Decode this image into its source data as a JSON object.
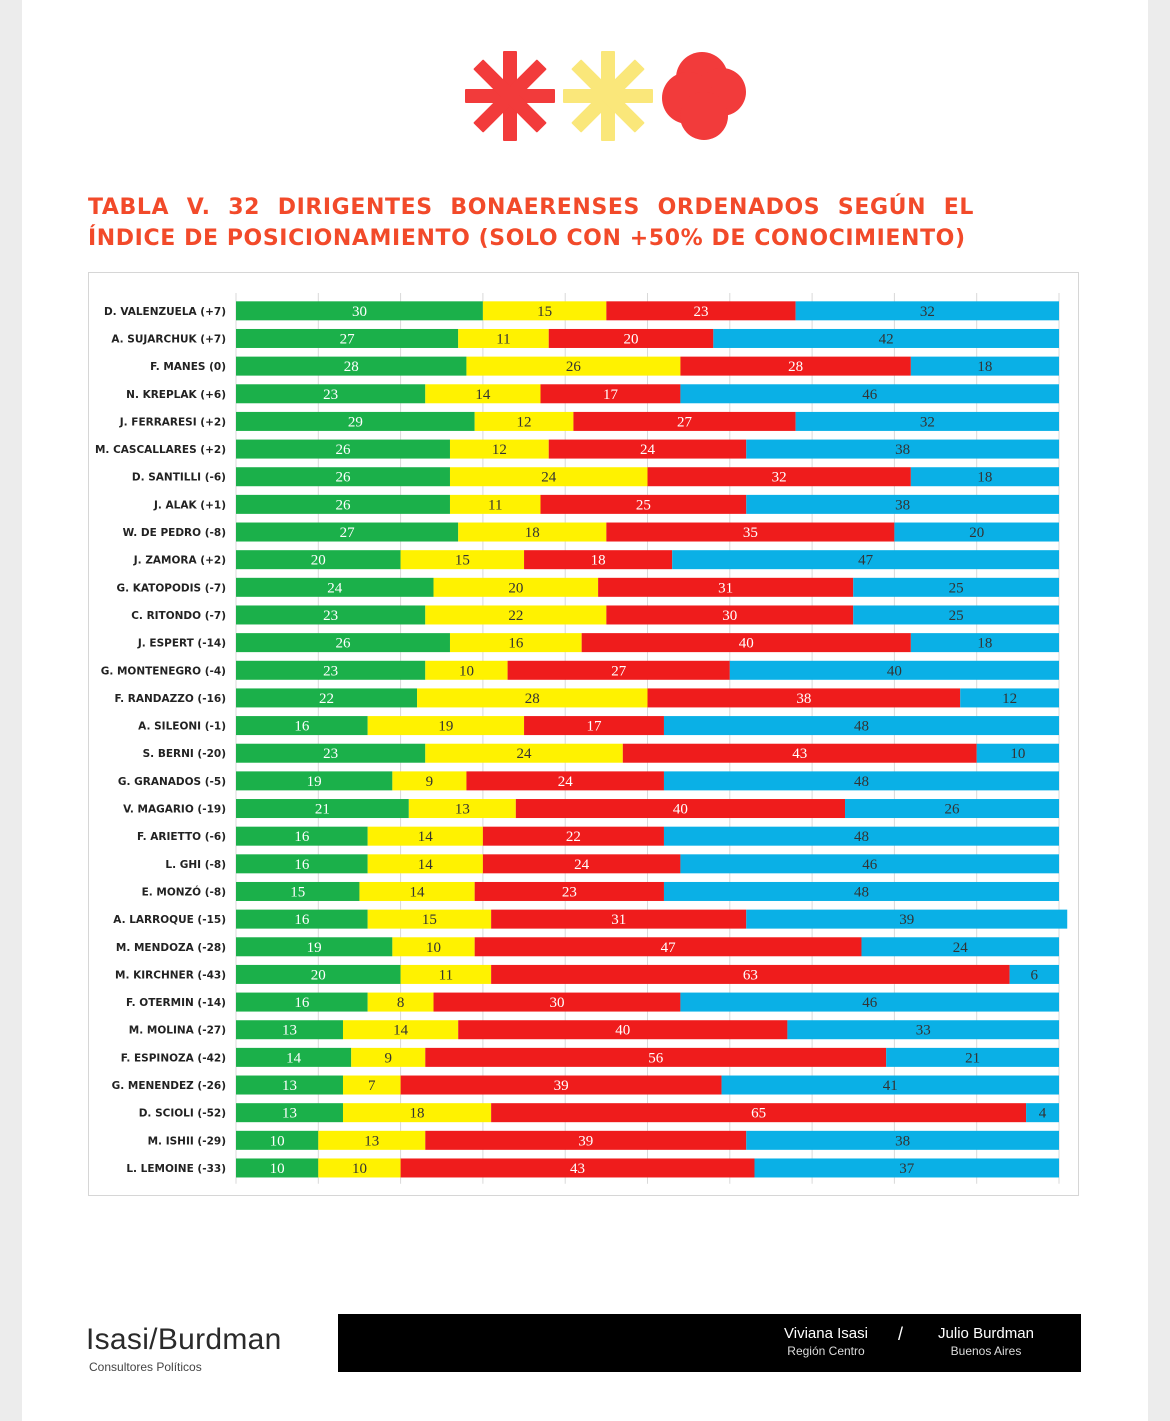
{
  "header": {
    "title": "TABLA V. 32 DIRIGENTES BONAERENSES ORDENADOS SEGÚN EL ÍNDICE DE POSICIONAMIENTO (SOLO CON +50% DE CONOCIMIENTO)",
    "logo_icon": "asterisk-asterisk-cloud-logo",
    "logo_colors": [
      "#f23b3b",
      "#fae77a",
      "#f23b3b"
    ]
  },
  "chart_data": {
    "type": "bar",
    "orientation": "horizontal-stacked-100",
    "title": "",
    "xlabel": "",
    "ylabel": "",
    "xlim": [
      0,
      100
    ],
    "grid": true,
    "categories": [
      "D. VALENZUELA (+7)",
      "A. SUJARCHUK (+7)",
      "F. MANES (0)",
      "N. KREPLAK (+6)",
      "J. FERRARESI (+2)",
      "M. CASCALLARES (+2)",
      "D. SANTILLI (-6)",
      "J. ALAK (+1)",
      "W. DE PEDRO (-8)",
      "J. ZAMORA (+2)",
      "G. KATOPODIS (-7)",
      "C. RITONDO (-7)",
      "J. ESPERT (-14)",
      "G. MONTENEGRO (-4)",
      "F. RANDAZZO (-16)",
      "A. SILEONI (-1)",
      "S. BERNI (-20)",
      "G. GRANADOS (-5)",
      "V. MAGARIO (-19)",
      "F. ARIETTO (-6)",
      "L. GHI (-8)",
      "E. MONZÓ (-8)",
      "A. LARROQUE (-15)",
      "M. MENDOZA (-28)",
      "M. KIRCHNER (-43)",
      "F. OTERMIN (-14)",
      "M. MOLINA (-27)",
      "F. ESPINOZA (-42)",
      "G. MENENDEZ (-26)",
      "D. SCIOLI (-52)",
      "M. ISHII (-29)",
      "L. LEMOINE (-33)"
    ],
    "series": [
      {
        "color": "#1bb04a",
        "label_color": "#ffffff",
        "values": [
          30,
          27,
          28,
          23,
          29,
          26,
          26,
          26,
          27,
          20,
          24,
          23,
          26,
          23,
          22,
          16,
          23,
          19,
          21,
          16,
          16,
          15,
          16,
          19,
          20,
          16,
          13,
          14,
          13,
          13,
          10,
          10
        ]
      },
      {
        "color": "#fff200",
        "label_color": "#333333",
        "values": [
          15,
          11,
          26,
          14,
          12,
          12,
          24,
          11,
          18,
          15,
          20,
          22,
          16,
          10,
          28,
          19,
          24,
          9,
          13,
          14,
          14,
          14,
          15,
          10,
          11,
          8,
          14,
          9,
          7,
          18,
          13,
          10
        ]
      },
      {
        "color": "#ef1c1c",
        "label_color": "#ffffff",
        "values": [
          23,
          20,
          28,
          17,
          27,
          24,
          32,
          25,
          35,
          18,
          31,
          30,
          40,
          27,
          38,
          17,
          43,
          24,
          40,
          22,
          24,
          23,
          31,
          47,
          63,
          30,
          40,
          56,
          39,
          65,
          39,
          43
        ]
      },
      {
        "color": "#0ab0e6",
        "label_color": "#333333",
        "values": [
          32,
          42,
          18,
          46,
          32,
          38,
          18,
          38,
          20,
          47,
          25,
          25,
          18,
          40,
          12,
          48,
          10,
          48,
          26,
          48,
          46,
          48,
          39,
          24,
          6,
          46,
          33,
          21,
          41,
          4,
          38,
          37
        ]
      }
    ]
  },
  "footer": {
    "brand_name": "Isasi/Burdman",
    "brand_sub": "Consultores Políticos",
    "left_name": "Viviana Isasi",
    "left_region": "Región Centro",
    "separator": "/",
    "right_name": "Julio Burdman",
    "right_region": "Buenos Aires"
  }
}
